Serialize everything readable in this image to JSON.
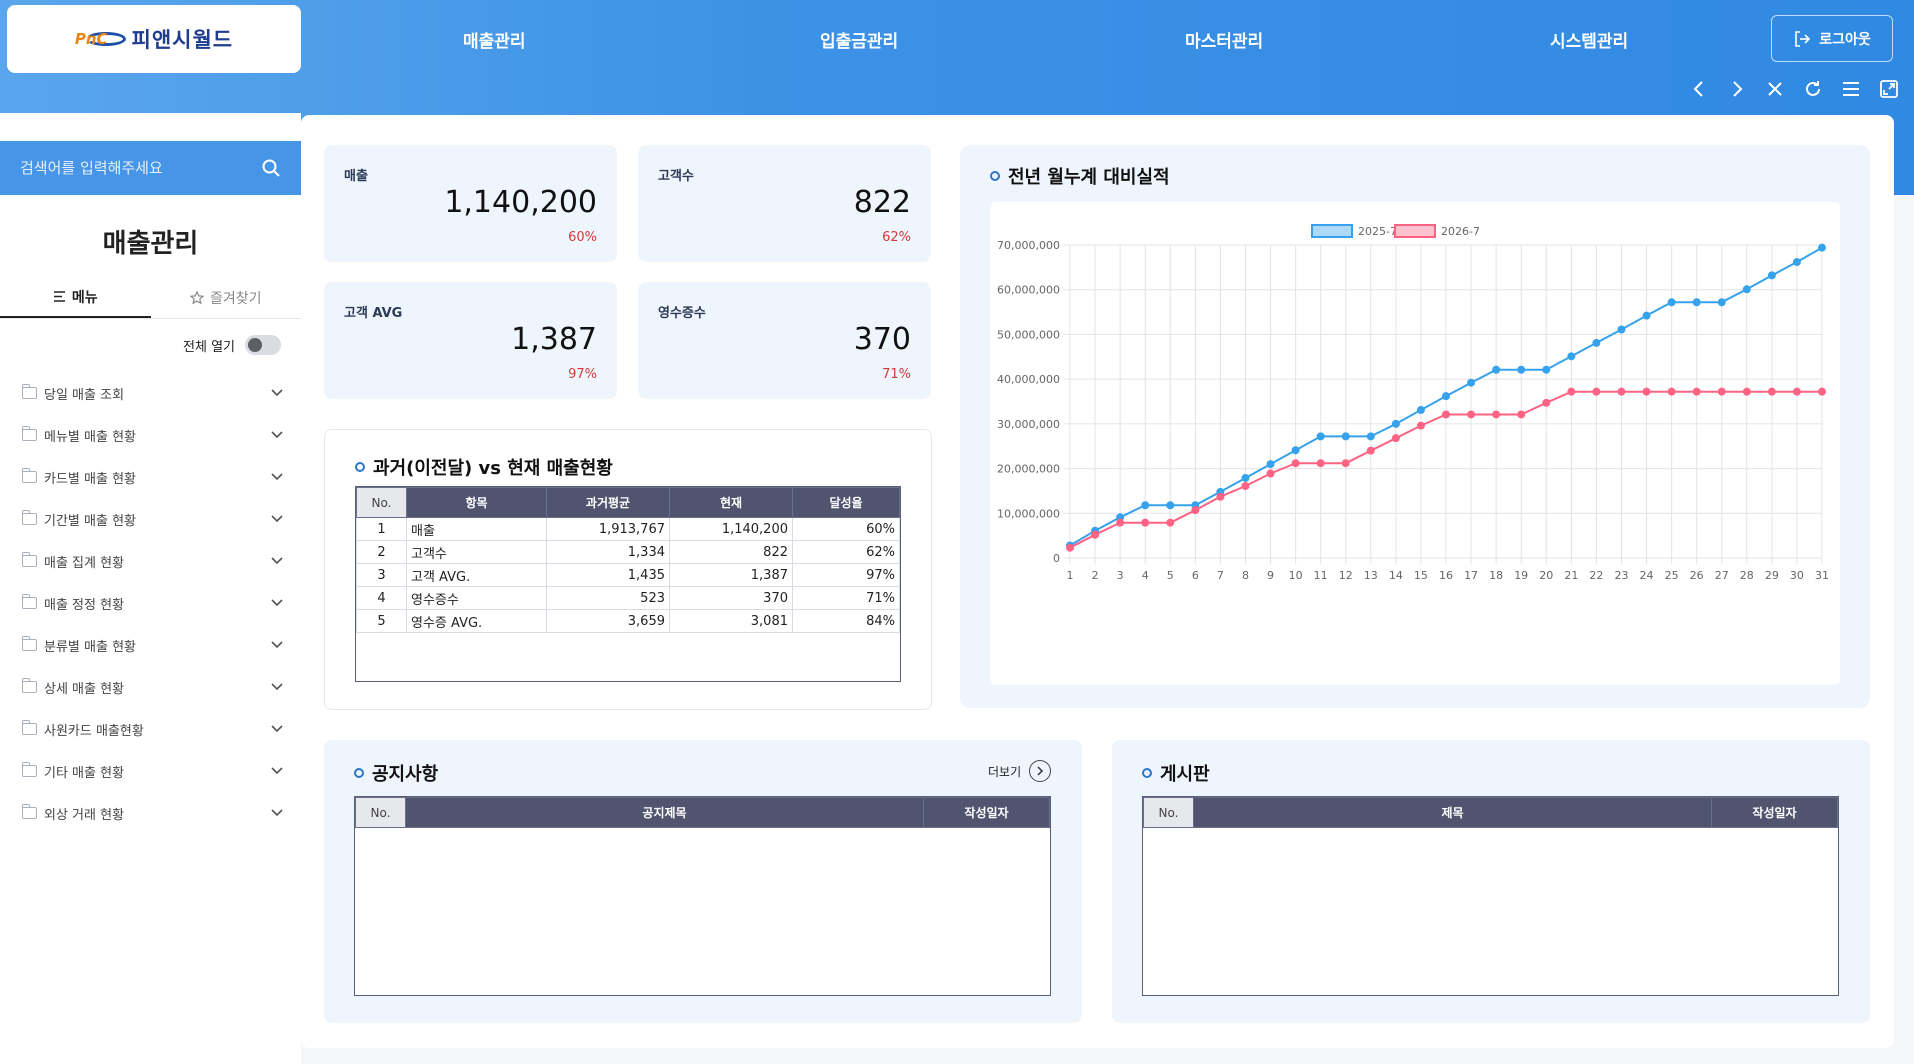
{
  "app": {
    "logo_text": "피앤시월드",
    "logo_mark": "PnC"
  },
  "nav": {
    "items": [
      "매출관리",
      "입출금관리",
      "마스터관리",
      "시스템관리"
    ],
    "logout": "로그아웃"
  },
  "sidebar": {
    "search_placeholder": "검색어를 입력해주세요",
    "title": "매출관리",
    "tabs": [
      "메뉴",
      "즐겨찾기"
    ],
    "expand_all": "전체 열기",
    "items": [
      "당일 매출 조회",
      "메뉴별 매출 현황",
      "카드별 매출 현황",
      "기간별 매출 현황",
      "매출 집계 현황",
      "매출 정정 현황",
      "분류별 매출 현황",
      "상세 매출 현황",
      "사원카드 매출현황",
      "기타 매출 현황",
      "외상 거래 현황"
    ]
  },
  "stats": [
    {
      "title": "매출",
      "value": "1,140,200",
      "pct": "60%"
    },
    {
      "title": "고객수",
      "value": "822",
      "pct": "62%"
    },
    {
      "title": "고객 AVG",
      "value": "1,387",
      "pct": "97%"
    },
    {
      "title": "영수증수",
      "value": "370",
      "pct": "71%"
    }
  ],
  "compare": {
    "title": "과거(이전달) vs 현재 매출현황",
    "headers": [
      "No.",
      "항목",
      "과거평균",
      "현재",
      "달성율"
    ],
    "rows": [
      [
        "1",
        "매출",
        "1,913,767",
        "1,140,200",
        "60%"
      ],
      [
        "2",
        "고객수",
        "1,334",
        "822",
        "62%"
      ],
      [
        "3",
        "고객 AVG.",
        "1,435",
        "1,387",
        "97%"
      ],
      [
        "4",
        "영수증수",
        "523",
        "370",
        "71%"
      ],
      [
        "5",
        "영수증 AVG.",
        "3,659",
        "3,081",
        "84%"
      ]
    ]
  },
  "notice": {
    "title": "공지사항",
    "more": "더보기",
    "headers": [
      "No.",
      "공지제목",
      "작성일자"
    ]
  },
  "board": {
    "title": "게시판",
    "headers": [
      "No.",
      "제목",
      "작성일자"
    ]
  },
  "chart_title": "전년 월누계 대비실적",
  "chart_data": {
    "type": "line",
    "title": "전년 월누계 대비실적",
    "x": [
      1,
      2,
      3,
      4,
      5,
      6,
      7,
      8,
      9,
      10,
      11,
      12,
      13,
      14,
      15,
      16,
      17,
      18,
      19,
      20,
      21,
      22,
      23,
      24,
      25,
      26,
      27,
      28,
      29,
      30,
      31
    ],
    "ylim": [
      0,
      70000000
    ],
    "yticks": [
      "0",
      "10,000,000",
      "20,000,000",
      "30,000,000",
      "40,000,000",
      "50,000,000",
      "60,000,000",
      "70,000,000"
    ],
    "legend_position": "top",
    "grid": true,
    "series": [
      {
        "name": "2025-7",
        "color": "#36a2eb",
        "values": [
          2800000,
          6100000,
          9100000,
          11800000,
          11800000,
          11800000,
          14800000,
          17900000,
          21000000,
          24100000,
          27200000,
          27200000,
          27200000,
          30000000,
          33100000,
          36200000,
          39200000,
          42100000,
          42100000,
          42100000,
          45100000,
          48100000,
          51100000,
          54200000,
          57200000,
          57200000,
          57200000,
          60100000,
          63200000,
          66200000,
          69400000
        ]
      },
      {
        "name": "2026-7",
        "color": "#ff6384",
        "values": [
          2300000,
          5200000,
          7900000,
          7900000,
          7900000,
          10700000,
          13700000,
          16100000,
          18900000,
          21200000,
          21200000,
          21200000,
          24000000,
          26800000,
          29600000,
          32100000,
          32100000,
          32100000,
          32100000,
          34700000,
          37200000,
          37200000,
          37200000,
          37200000,
          37200000,
          37200000,
          37200000,
          37200000,
          37200000,
          37200000,
          37200000
        ]
      }
    ]
  }
}
